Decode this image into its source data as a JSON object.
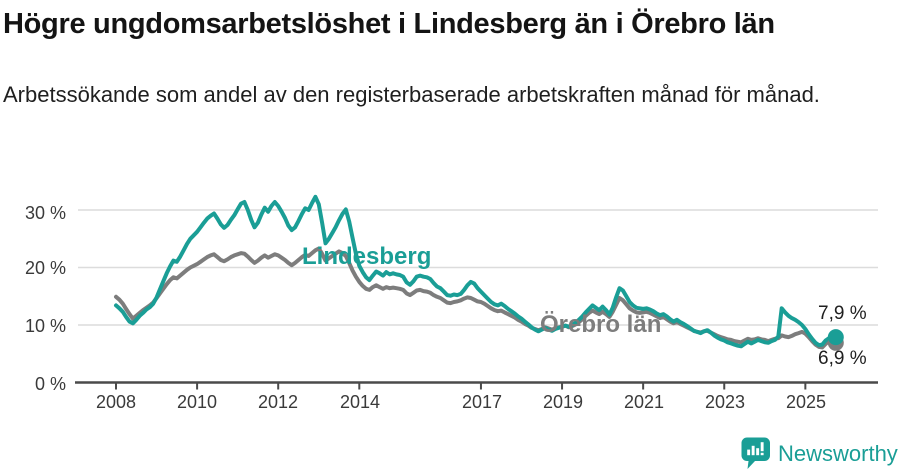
{
  "header": {
    "title": "Högre ungdomsarbetslöshet i Lindesberg än i Örebro län",
    "subtitle": "Arbetssökande som andel av den registerbaserade arbetskraften månad för månad."
  },
  "footer": {
    "brand": "Newsworthy"
  },
  "colors": {
    "accent": "#1a9e96",
    "secondary": "#7d7d7d",
    "grid": "#dcdcdc",
    "axis": "#4a4a4a",
    "title_text": "#141414",
    "tick_text": "#3a3a3a"
  },
  "chart_data": {
    "type": "line",
    "x_unit": "month",
    "x_start": "2008-01",
    "x_end": "2025-10",
    "ylim": [
      0,
      33
    ],
    "grid": true,
    "legend_position": "inline-labels",
    "y_tick_labels": [
      "0 %",
      "10 %",
      "20 %",
      "30 %"
    ],
    "y_tick_values": [
      0,
      10,
      20,
      30
    ],
    "x_tick_years": [
      2008,
      2010,
      2012,
      2014,
      2017,
      2019,
      2021,
      2023,
      2025
    ],
    "x_tick_labels": [
      "2008",
      "2010",
      "2012",
      "2014",
      "2017",
      "2019",
      "2021",
      "2023",
      "2025"
    ],
    "series": [
      {
        "name": "Lindesberg",
        "color": "#1a9e96",
        "end_label": "7,9 %",
        "end_value": 7.9,
        "values": [
          13.4,
          12.9,
          12.3,
          11.4,
          10.6,
          10.3,
          10.9,
          11.6,
          12.1,
          12.7,
          13.1,
          13.7,
          14.8,
          16.2,
          17.6,
          19.0,
          20.2,
          21.2,
          21.0,
          21.9,
          23.0,
          24.1,
          25.0,
          25.6,
          26.2,
          27.0,
          27.8,
          28.5,
          29.0,
          29.4,
          28.5,
          27.5,
          26.9,
          27.4,
          28.3,
          29.1,
          30.1,
          31.1,
          31.4,
          30.0,
          28.3,
          27.0,
          27.8,
          29.2,
          30.4,
          29.7,
          30.7,
          31.4,
          30.7,
          29.7,
          28.6,
          27.3,
          26.5,
          27.0,
          28.1,
          29.3,
          30.3,
          30.0,
          31.2,
          32.3,
          31.0,
          27.8,
          24.2,
          25.0,
          26.0,
          27.0,
          28.2,
          29.3,
          30.1,
          28.0,
          25.2,
          22.4,
          20.3,
          19.2,
          18.3,
          17.8,
          18.6,
          19.3,
          19.0,
          18.6,
          19.2,
          18.8,
          19.0,
          18.8,
          18.7,
          18.4,
          17.4,
          17.0,
          17.6,
          18.4,
          18.6,
          18.4,
          18.3,
          18.0,
          17.3,
          16.7,
          16.4,
          15.8,
          15.2,
          15.1,
          15.3,
          15.2,
          15.4,
          16.1,
          16.9,
          17.5,
          17.2,
          16.4,
          15.8,
          15.2,
          14.6,
          14.0,
          13.6,
          13.4,
          13.7,
          13.3,
          12.8,
          12.4,
          12.0,
          11.5,
          11.1,
          10.6,
          10.1,
          9.6,
          9.2,
          8.9,
          9.2,
          9.5,
          9.2,
          9.0,
          9.3,
          9.5,
          9.7,
          9.9,
          9.7,
          10.0,
          10.4,
          10.9,
          11.5,
          12.2,
          12.8,
          13.4,
          13.0,
          12.6,
          13.2,
          12.6,
          11.8,
          13.0,
          14.8,
          16.4,
          16.0,
          15.0,
          14.0,
          13.4,
          13.0,
          12.9,
          12.8,
          12.9,
          12.7,
          12.4,
          12.0,
          11.7,
          11.9,
          11.5,
          11.0,
          10.6,
          10.9,
          10.5,
          10.2,
          9.8,
          9.4,
          9.0,
          8.8,
          8.6,
          8.9,
          9.1,
          8.7,
          8.2,
          7.8,
          7.5,
          7.3,
          7.0,
          6.8,
          6.6,
          6.4,
          6.3,
          6.7,
          7.1,
          6.8,
          7.1,
          7.4,
          7.2,
          7.0,
          6.9,
          7.2,
          7.4,
          8.0,
          12.9,
          12.2,
          11.6,
          11.2,
          10.9,
          10.5,
          10.0,
          9.3,
          8.4,
          7.6,
          6.9,
          6.5,
          6.6,
          7.3,
          7.7,
          7.1,
          7.9
        ]
      },
      {
        "name": "Örebro län",
        "color": "#7d7d7d",
        "end_label": "6,9 %",
        "end_value": 6.9,
        "values": [
          14.9,
          14.4,
          13.7,
          12.8,
          11.9,
          11.1,
          11.6,
          12.1,
          12.6,
          13.0,
          13.4,
          13.9,
          14.7,
          15.5,
          16.3,
          17.1,
          17.8,
          18.3,
          18.1,
          18.6,
          19.1,
          19.6,
          20.0,
          20.3,
          20.6,
          21.0,
          21.4,
          21.8,
          22.1,
          22.3,
          21.8,
          21.3,
          21.1,
          21.4,
          21.8,
          22.1,
          22.3,
          22.5,
          22.4,
          21.9,
          21.3,
          20.8,
          21.2,
          21.7,
          22.1,
          21.7,
          22.0,
          22.3,
          22.1,
          21.7,
          21.3,
          20.8,
          20.4,
          20.8,
          21.3,
          21.8,
          22.2,
          22.0,
          22.5,
          23.0,
          23.3,
          22.4,
          21.2,
          21.6,
          22.0,
          22.4,
          22.8,
          22.5,
          22.0,
          20.8,
          19.5,
          18.4,
          17.5,
          16.8,
          16.3,
          16.1,
          16.6,
          16.9,
          16.6,
          16.3,
          16.6,
          16.4,
          16.5,
          16.4,
          16.3,
          16.1,
          15.5,
          15.2,
          15.6,
          16.0,
          16.1,
          15.9,
          15.8,
          15.6,
          15.2,
          14.9,
          14.7,
          14.3,
          13.9,
          13.8,
          14.0,
          14.1,
          14.3,
          14.6,
          14.8,
          14.7,
          14.4,
          14.1,
          14.0,
          13.7,
          13.3,
          12.9,
          12.6,
          12.4,
          12.5,
          12.2,
          11.9,
          11.6,
          11.3,
          10.9,
          10.6,
          10.2,
          9.9,
          9.5,
          9.3,
          9.1,
          9.3,
          9.6,
          9.4,
          9.2,
          9.4,
          9.6,
          9.7,
          9.9,
          9.6,
          9.8,
          10.1,
          10.5,
          11.0,
          11.6,
          12.1,
          12.5,
          12.2,
          11.9,
          12.3,
          11.9,
          11.4,
          12.3,
          13.5,
          14.7,
          14.3,
          13.6,
          12.9,
          12.5,
          12.2,
          12.1,
          12.2,
          12.3,
          12.1,
          11.8,
          11.5,
          11.2,
          11.4,
          11.0,
          10.6,
          10.3,
          10.5,
          10.2,
          9.9,
          9.6,
          9.3,
          9.0,
          8.8,
          8.7,
          8.9,
          9.0,
          8.7,
          8.4,
          8.1,
          7.9,
          7.7,
          7.5,
          7.4,
          7.2,
          7.1,
          7.0,
          7.3,
          7.6,
          7.4,
          7.5,
          7.7,
          7.5,
          7.4,
          7.2,
          7.4,
          7.6,
          7.7,
          8.2,
          8.0,
          7.9,
          8.1,
          8.4,
          8.6,
          8.8,
          8.5,
          7.9,
          7.2,
          6.6,
          6.2,
          6.1,
          6.7,
          7.2,
          6.6,
          6.9
        ]
      }
    ]
  }
}
